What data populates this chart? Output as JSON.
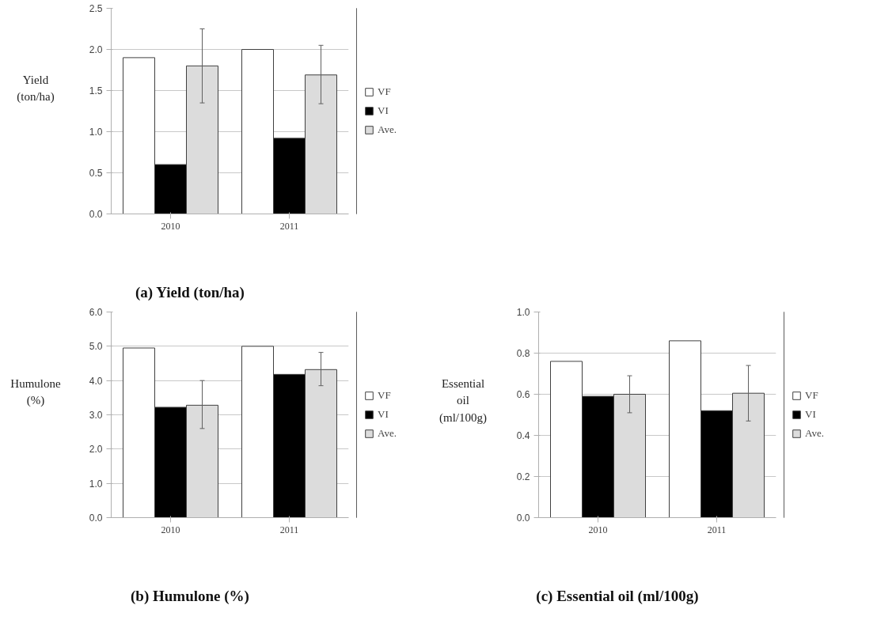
{
  "chart_data": [
    {
      "type": "bar",
      "title": "(a) Yield (ton/ha)",
      "ylabel": "Yield\n(ton/ha)",
      "categories": [
        "2010",
        "2011"
      ],
      "ylim": [
        0,
        2.5
      ],
      "yticks": [
        {
          "value": 0,
          "label": "0.0"
        },
        {
          "value": 0.5,
          "label": "0.5"
        },
        {
          "value": 1,
          "label": "1.0"
        },
        {
          "value": 1.5,
          "label": "1.5"
        },
        {
          "value": 2,
          "label": "2.0"
        },
        {
          "value": 2.5,
          "label": "2.5"
        }
      ],
      "grid": "y",
      "legend": "right",
      "series": [
        {
          "name": "VF",
          "color": "#ffffff",
          "values": [
            1.9,
            2.0
          ]
        },
        {
          "name": "VI",
          "color": "#000000",
          "values": [
            0.6,
            0.92
          ]
        },
        {
          "name": "Ave.",
          "color": "#dcdcdc",
          "values": [
            1.8,
            1.69
          ],
          "errors": [
            [
              1.35,
              2.25
            ],
            [
              1.34,
              2.05
            ]
          ]
        }
      ]
    },
    {
      "type": "bar",
      "title": "(b) Humulone (%)",
      "ylabel": "Humulone\n(%)",
      "categories": [
        "2010",
        "2011"
      ],
      "ylim": [
        0,
        6
      ],
      "yticks": [
        {
          "value": 0,
          "label": "0.0"
        },
        {
          "value": 1,
          "label": "1.0"
        },
        {
          "value": 2,
          "label": "2.0"
        },
        {
          "value": 3,
          "label": "3.0"
        },
        {
          "value": 4,
          "label": "4.0"
        },
        {
          "value": 5,
          "label": "5.0"
        },
        {
          "value": 6,
          "label": "6.0"
        }
      ],
      "grid": "y",
      "legend": "right",
      "series": [
        {
          "name": "VF",
          "color": "#ffffff",
          "values": [
            4.95,
            5.0
          ]
        },
        {
          "name": "VI",
          "color": "#000000",
          "values": [
            3.22,
            4.18
          ]
        },
        {
          "name": "Ave.",
          "color": "#dcdcdc",
          "values": [
            3.28,
            4.32
          ],
          "errors": [
            [
              2.6,
              4.0
            ],
            [
              3.85,
              4.82
            ]
          ]
        }
      ]
    },
    {
      "type": "bar",
      "title": "(c) Essential oil (ml/100g)",
      "ylabel": "Essential\noil\n(ml/100g)",
      "categories": [
        "2010",
        "2011"
      ],
      "ylim": [
        0,
        1
      ],
      "yticks": [
        {
          "value": 0,
          "label": "0.0"
        },
        {
          "value": 0.2,
          "label": "0.2"
        },
        {
          "value": 0.4,
          "label": "0.4"
        },
        {
          "value": 0.6,
          "label": "0.6"
        },
        {
          "value": 0.8,
          "label": "0.8"
        },
        {
          "value": 1,
          "label": "1.0"
        }
      ],
      "grid": "y",
      "legend": "right",
      "series": [
        {
          "name": "VF",
          "color": "#ffffff",
          "values": [
            0.76,
            0.86
          ]
        },
        {
          "name": "VI",
          "color": "#000000",
          "values": [
            0.59,
            0.52
          ]
        },
        {
          "name": "Ave.",
          "color": "#dcdcdc",
          "values": [
            0.6,
            0.605
          ],
          "errors": [
            [
              0.51,
              0.69
            ],
            [
              0.47,
              0.74
            ]
          ]
        }
      ]
    }
  ]
}
